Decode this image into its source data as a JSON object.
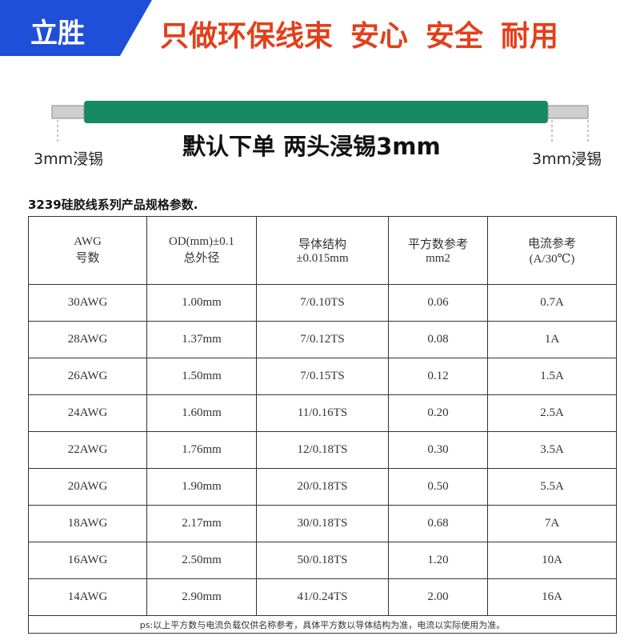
{
  "header": {
    "brand": "立胜",
    "slogan": [
      "只做环保线束",
      "安心",
      "安全",
      "耐用"
    ]
  },
  "wire": {
    "left_label": "3mm浸锡",
    "right_label": "3mm浸锡",
    "caption": "默认下单 两头浸锡3mm"
  },
  "table": {
    "title": "3239硅胶线系列产品规格参数.",
    "headers": [
      [
        "AWG",
        "号数"
      ],
      [
        "OD(mm)±0.1",
        "总外径"
      ],
      [
        "导体结构",
        "±0.015mm"
      ],
      [
        "平方数参考",
        "mm2"
      ],
      [
        "电流参考",
        "(A/30℃)"
      ]
    ],
    "rows": [
      [
        "30AWG",
        "1.00mm",
        "7/0.10TS",
        "0.06",
        "0.7A"
      ],
      [
        "28AWG",
        "1.37mm",
        "7/0.12TS",
        "0.08",
        "1A"
      ],
      [
        "26AWG",
        "1.50mm",
        "7/0.15TS",
        "0.12",
        "1.5A"
      ],
      [
        "24AWG",
        "1.60mm",
        "11/0.16TS",
        "0.20",
        "2.5A"
      ],
      [
        "22AWG",
        "1.76mm",
        "12/0.18TS",
        "0.30",
        "3.5A"
      ],
      [
        "20AWG",
        "1.90mm",
        "20/0.18TS",
        "0.50",
        "5.5A"
      ],
      [
        "18AWG",
        "2.17mm",
        "30/0.18TS",
        "0.68",
        "7A"
      ],
      [
        "16AWG",
        "2.50mm",
        "50/0.18TS",
        "1.20",
        "10A"
      ],
      [
        "14AWG",
        "2.90mm",
        "41/0.24TS",
        "2.00",
        "16A"
      ]
    ],
    "footnote": "ps:以上平方数与电流负载仅供名称参考，具体平方数以导体结构为准，电流以实际使用为准。"
  }
}
